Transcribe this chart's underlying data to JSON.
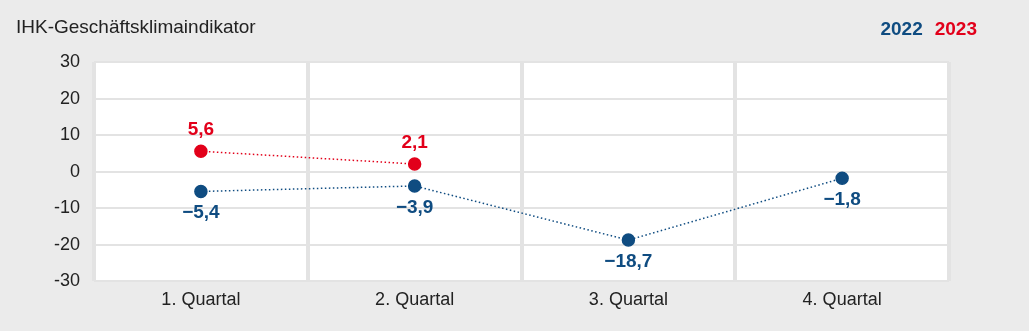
{
  "chart_data": {
    "type": "line",
    "title": "IHK-Geschäftsklimaindikator",
    "categories": [
      "1. Quartal",
      "2. Quartal",
      "3. Quartal",
      "4. Quartal"
    ],
    "series": [
      {
        "name": "2022",
        "color": "#0f4c81",
        "values": [
          -5.4,
          -3.9,
          -18.7,
          -1.8
        ],
        "value_labels": [
          "−5,4",
          "−3,9",
          "−18,7",
          "−1,8"
        ]
      },
      {
        "name": "2023",
        "color": "#e2001a",
        "values": [
          5.6,
          2.1,
          null,
          null
        ],
        "value_labels": [
          "5,6",
          "2,1",
          null,
          null
        ]
      }
    ],
    "ylim": [
      -30,
      30
    ],
    "yticks": [
      -30,
      -20,
      -10,
      0,
      10,
      20,
      30
    ],
    "grid": true,
    "legend": "top right",
    "marker": "circle",
    "line_style": "dotted"
  }
}
